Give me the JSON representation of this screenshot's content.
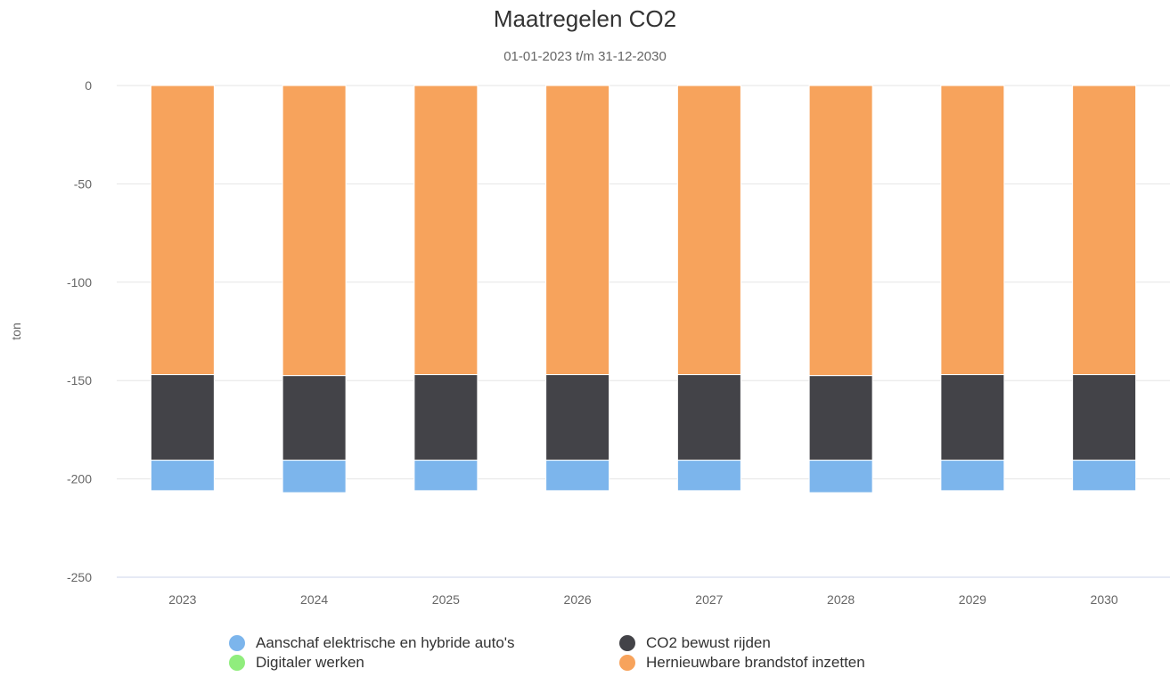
{
  "chart_data": {
    "type": "bar",
    "stacked": true,
    "title": "Maatregelen CO2",
    "subtitle": "01-01-2023 t/m 31-12-2030",
    "xlabel": "",
    "ylabel": "ton",
    "ylim": [
      -250,
      0
    ],
    "yticks": [
      "0",
      "-50",
      "-100",
      "-150",
      "-200",
      "-250"
    ],
    "categories": [
      "2023",
      "2024",
      "2025",
      "2026",
      "2027",
      "2028",
      "2029",
      "2030"
    ],
    "series": [
      {
        "name": "Hernieuwbare brandstof inzetten",
        "color": "#f7a35c",
        "values": [
          -147,
          -147.5,
          -147,
          -147,
          -147,
          -147.5,
          -147,
          -147
        ]
      },
      {
        "name": "CO2 bewust rijden",
        "color": "#434348",
        "values": [
          -43.5,
          -43,
          -43.5,
          -43.5,
          -43.5,
          -43,
          -43.5,
          -43.5
        ]
      },
      {
        "name": "Digitaler werken",
        "color": "#90ed7d",
        "values": [
          0,
          0,
          0,
          0,
          0,
          0,
          0,
          0
        ]
      },
      {
        "name": "Aanschaf elektrische en hybride auto's",
        "color": "#7cb5ec",
        "values": [
          -15.5,
          -16.5,
          -15.5,
          -15.5,
          -15.5,
          -16.5,
          -15.5,
          -15.5
        ]
      }
    ],
    "grid": true,
    "legend_position": "bottom",
    "legend_order": [
      "Aanschaf elektrische en hybride auto's",
      "CO2 bewust rijden",
      "Digitaler werken",
      "Hernieuwbare brandstof inzetten"
    ]
  }
}
